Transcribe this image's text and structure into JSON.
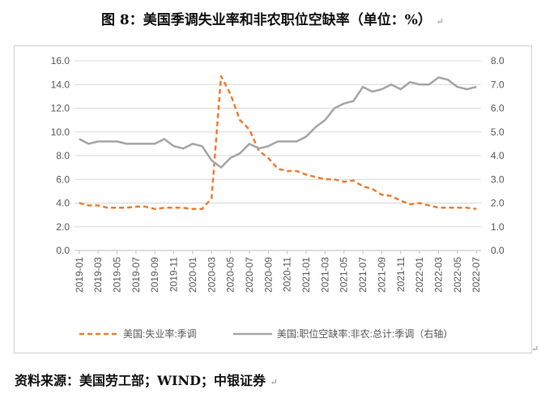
{
  "title": "图 8：美国季调失业率和非农职位空缺率（单位：%）",
  "source": "资料来源：美国劳工部；WIND；中银证券",
  "paragraph_mark": "↵",
  "chart_data": {
    "type": "line",
    "title": "图 8：美国季调失业率和非农职位空缺率（单位：%）",
    "xlabel": "",
    "ylabel_left": "%",
    "ylabel_right": "%",
    "ylim_left": [
      0,
      16
    ],
    "ylim_right": [
      0,
      8
    ],
    "yticks_left": [
      "0.0",
      "2.0",
      "4.0",
      "6.0",
      "8.0",
      "10.0",
      "12.0",
      "14.0",
      "16.0"
    ],
    "yticks_right": [
      "0.0",
      "1.0",
      "2.0",
      "3.0",
      "4.0",
      "5.0",
      "6.0",
      "7.0",
      "8.0"
    ],
    "x": [
      "2019-01",
      "2019-02",
      "2019-03",
      "2019-04",
      "2019-05",
      "2019-06",
      "2019-07",
      "2019-08",
      "2019-09",
      "2019-10",
      "2019-11",
      "2019-12",
      "2020-01",
      "2020-02",
      "2020-03",
      "2020-04",
      "2020-05",
      "2020-06",
      "2020-07",
      "2020-08",
      "2020-09",
      "2020-10",
      "2020-11",
      "2020-12",
      "2021-01",
      "2021-02",
      "2021-03",
      "2021-04",
      "2021-05",
      "2021-06",
      "2021-07",
      "2021-08",
      "2021-09",
      "2021-10",
      "2021-11",
      "2021-12",
      "2022-01",
      "2022-02",
      "2022-03",
      "2022-04",
      "2022-05",
      "2022-06",
      "2022-07"
    ],
    "xtick_labels": [
      "2019-01",
      "2019-03",
      "2019-05",
      "2019-07",
      "2019-09",
      "2019-11",
      "2020-01",
      "2020-03",
      "2020-05",
      "2020-07",
      "2020-09",
      "2020-11",
      "2021-01",
      "2021-03",
      "2021-05",
      "2021-07",
      "2021-09",
      "2021-11",
      "2022-01",
      "2022-03",
      "2022-05",
      "2022-07"
    ],
    "series": [
      {
        "name": "美国:失业率:季调",
        "axis": "left",
        "style": "dashed",
        "color": "#ed7d31",
        "values": [
          4.0,
          3.8,
          3.8,
          3.6,
          3.6,
          3.6,
          3.7,
          3.7,
          3.5,
          3.6,
          3.6,
          3.6,
          3.5,
          3.5,
          4.4,
          14.7,
          13.2,
          11.0,
          10.2,
          8.4,
          7.8,
          6.9,
          6.7,
          6.7,
          6.4,
          6.2,
          6.0,
          6.0,
          5.8,
          5.9,
          5.4,
          5.2,
          4.7,
          4.6,
          4.2,
          3.9,
          4.0,
          3.8,
          3.6,
          3.6,
          3.6,
          3.6,
          3.5
        ]
      },
      {
        "name": "美国:职位空缺率:非农:总计:季调（右轴）",
        "axis": "right",
        "style": "solid",
        "color": "#a5a5a5",
        "values": [
          4.7,
          4.5,
          4.6,
          4.6,
          4.6,
          4.5,
          4.5,
          4.5,
          4.5,
          4.7,
          4.4,
          4.3,
          4.5,
          4.4,
          3.8,
          3.5,
          3.9,
          4.1,
          4.5,
          4.3,
          4.4,
          4.6,
          4.6,
          4.6,
          4.8,
          5.2,
          5.5,
          6.0,
          6.2,
          6.3,
          6.9,
          6.7,
          6.8,
          7.0,
          6.8,
          7.1,
          7.0,
          7.0,
          7.3,
          7.2,
          6.9,
          6.8,
          6.9
        ]
      }
    ],
    "legend_position": "bottom"
  }
}
